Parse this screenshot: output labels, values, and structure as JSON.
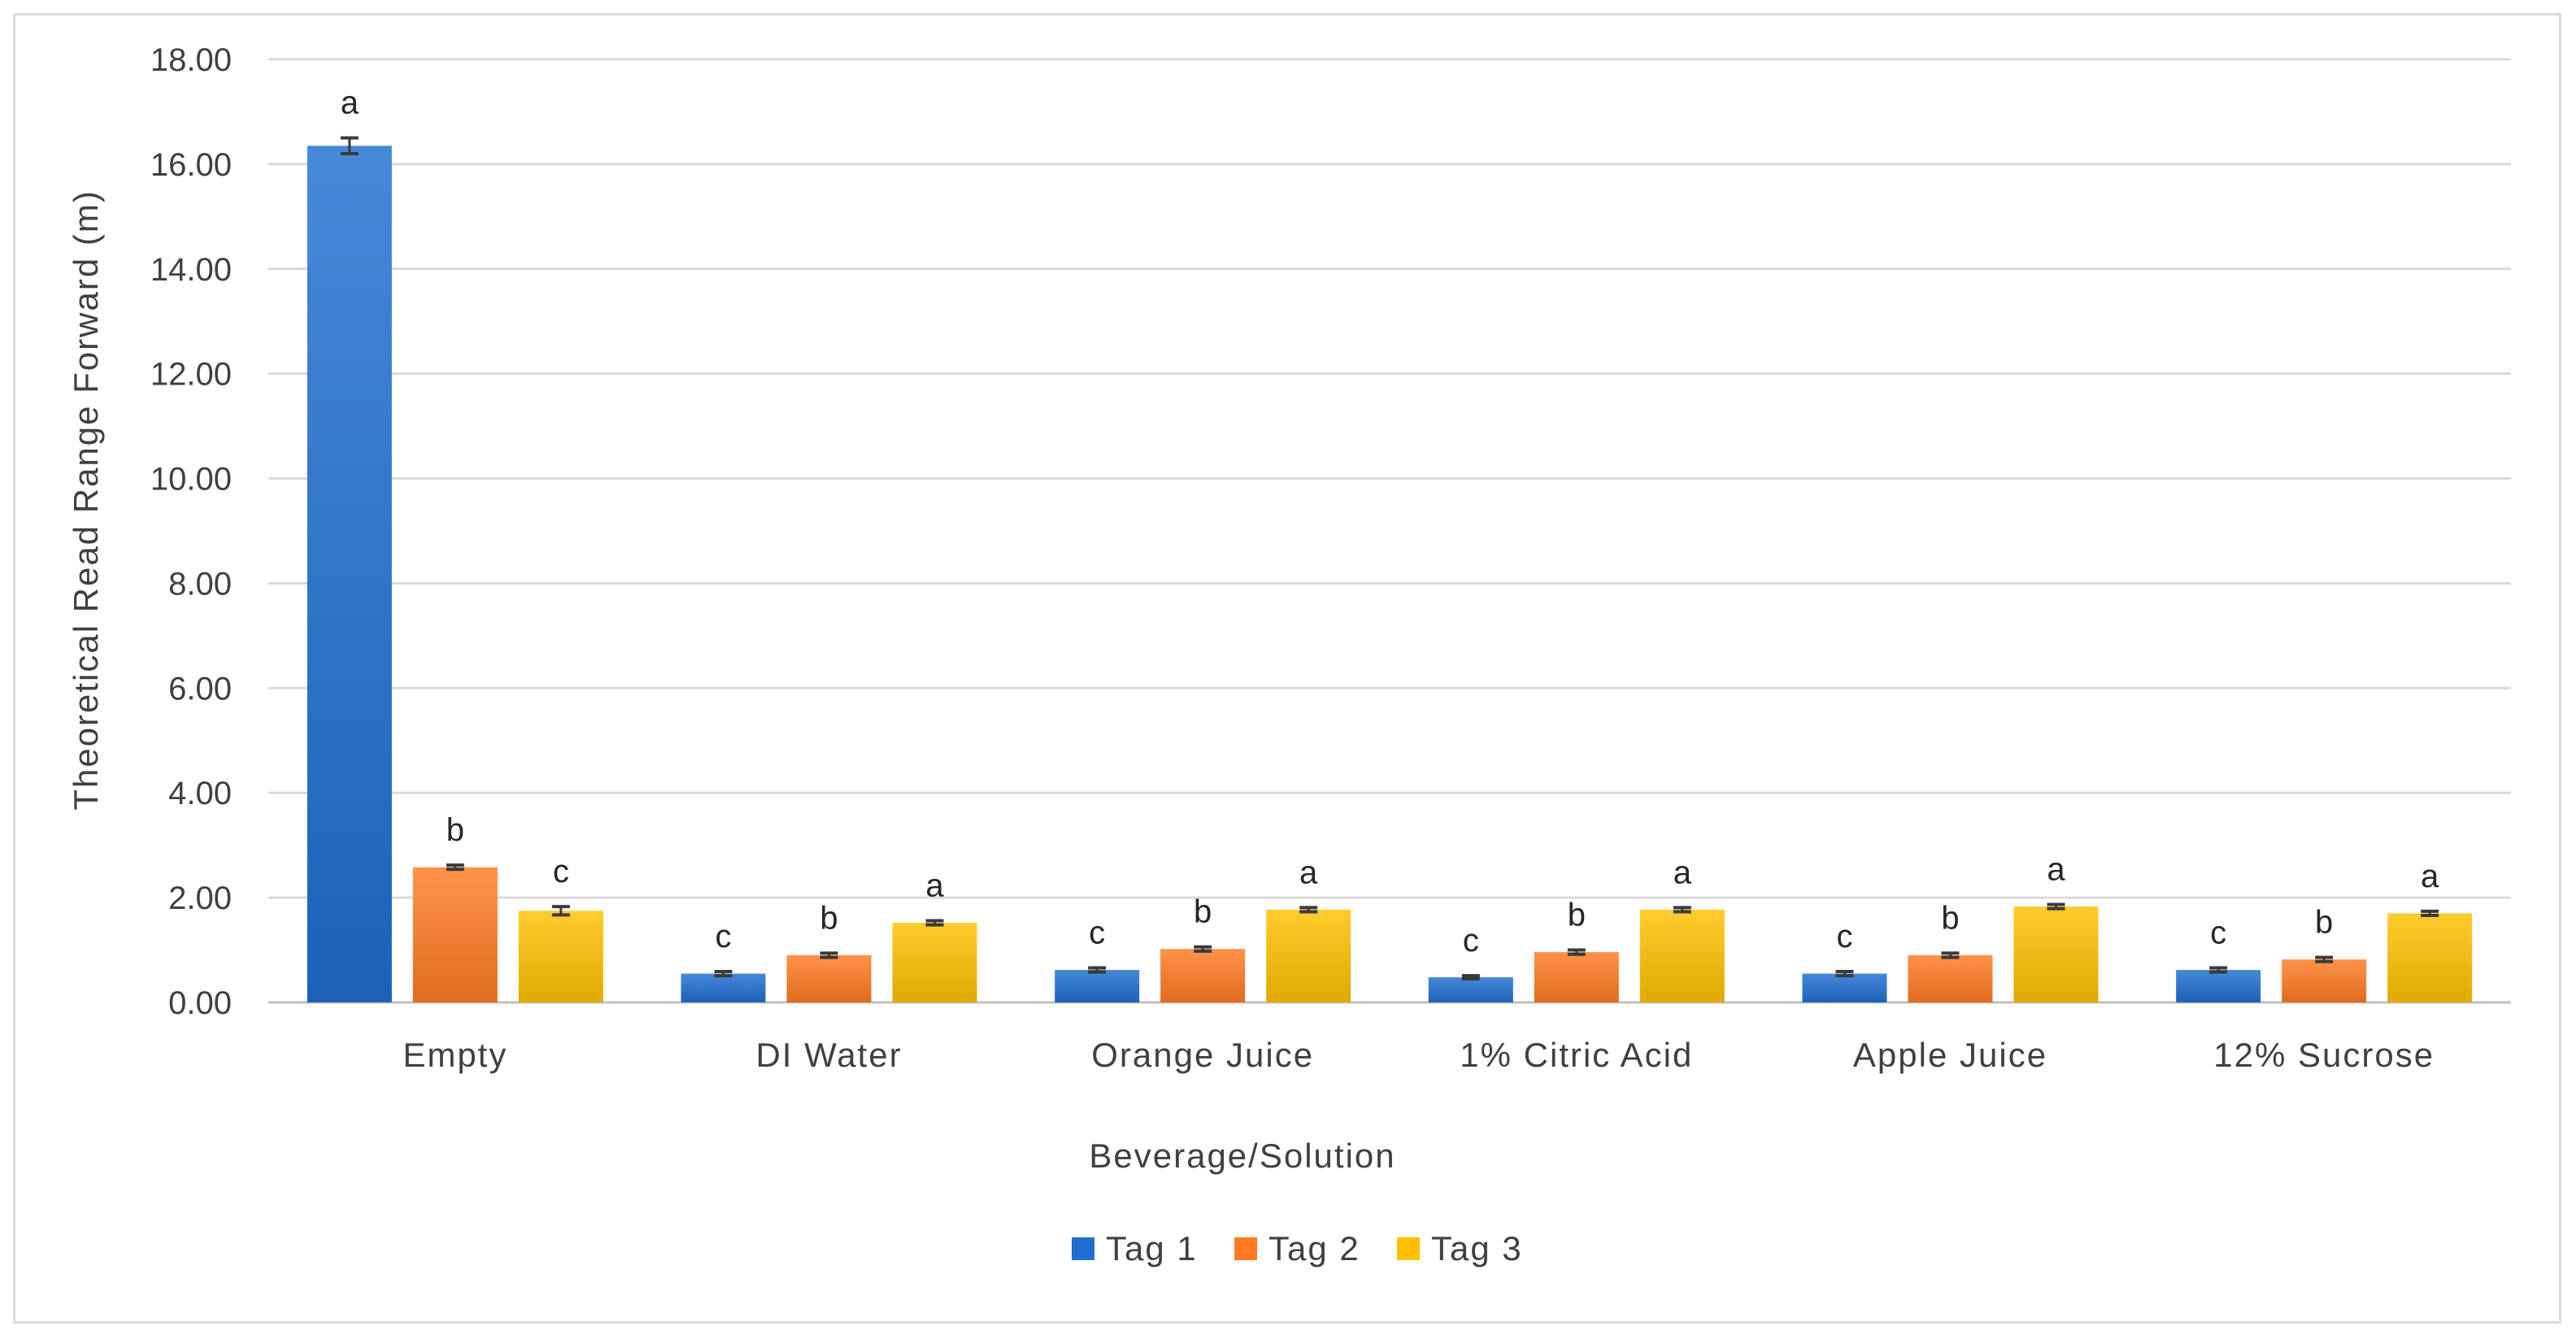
{
  "chart_data": {
    "type": "bar",
    "title": "",
    "xlabel": "Beverage/Solution",
    "ylabel": "Theoretical Read Range Forward (m)",
    "ylim": [
      0,
      18
    ],
    "yticks": [
      "0.00",
      "2.00",
      "4.00",
      "6.00",
      "8.00",
      "10.00",
      "12.00",
      "14.00",
      "16.00",
      "18.00"
    ],
    "grid": true,
    "legend_position": "bottom",
    "categories": [
      "Empty",
      "DI Water",
      "Orange Juice",
      "1% Citric Acid",
      "Apple Juice",
      "12% Sucrose"
    ],
    "series": [
      {
        "name": "Tag 1",
        "color": "#1f6fd1",
        "values": [
          16.35,
          0.55,
          0.62,
          0.48,
          0.55,
          0.62
        ],
        "errors": [
          0.15,
          0.04,
          0.04,
          0.03,
          0.04,
          0.04
        ],
        "letters": [
          "a",
          "c",
          "c",
          "c",
          "c",
          "c"
        ]
      },
      {
        "name": "Tag 2",
        "color": "#ff7a22",
        "values": [
          2.58,
          0.9,
          1.02,
          0.96,
          0.9,
          0.82
        ],
        "errors": [
          0.04,
          0.04,
          0.04,
          0.04,
          0.04,
          0.04
        ],
        "letters": [
          "b",
          "b",
          "b",
          "b",
          "b",
          "b"
        ]
      },
      {
        "name": "Tag 3",
        "color": "#ffc000",
        "values": [
          1.75,
          1.52,
          1.77,
          1.77,
          1.83,
          1.7
        ],
        "errors": [
          0.08,
          0.04,
          0.04,
          0.04,
          0.04,
          0.04
        ],
        "letters": [
          "c",
          "a",
          "a",
          "a",
          "a",
          "a"
        ]
      }
    ]
  }
}
